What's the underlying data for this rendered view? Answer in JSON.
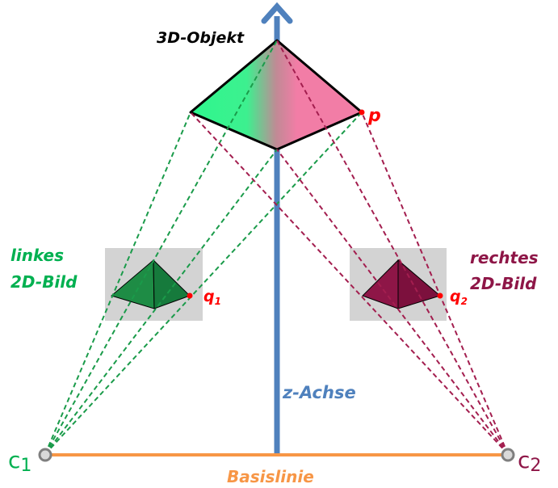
{
  "labels": {
    "object": "3D-Objekt",
    "point_p": "p",
    "left_image_line1": "linkes",
    "left_image_line2": "2D-Bild",
    "right_image_line1": "rechtes",
    "right_image_line2": "2D-Bild",
    "q1_base": "q",
    "q1_sub": "1",
    "q2_base": "q",
    "q2_sub": "2",
    "z_axis": "z-Achse",
    "baseline": "Basislinie",
    "c1_base": "c",
    "c1_sub": "1",
    "c2_base": "c",
    "c2_sub": "2"
  },
  "colors": {
    "z_axis": "#4f81bd",
    "baseline": "#f79646",
    "green": "#00b050",
    "green_lines": "#1a9b4a",
    "dark_green": "#1e8c45",
    "magenta": "#a31e4f",
    "dark_magenta": "#8e1647",
    "pink": "#f27da6",
    "mint": "#2ef78e",
    "red": "#ff0000",
    "image_plane": "#d3d3d3",
    "black": "#000000",
    "camera_gray": "#7f7f7f"
  }
}
